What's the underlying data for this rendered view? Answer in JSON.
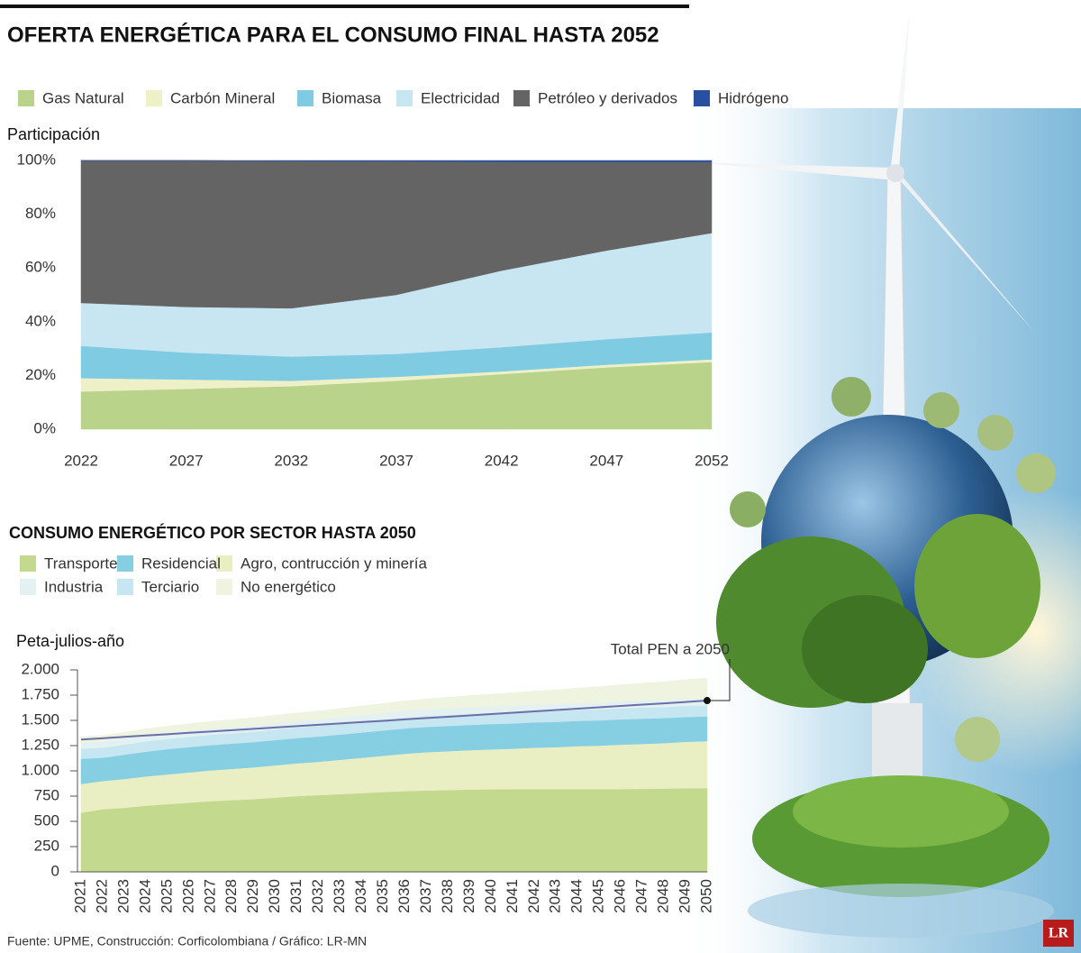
{
  "chart_data": [
    {
      "type": "area",
      "stacked": true,
      "title": "OFERTA ENERGÉTICA PARA EL CONSUMO FINAL HASTA 2052",
      "y_label": "Participación",
      "x": [
        2022,
        2027,
        2032,
        2037,
        2042,
        2047,
        2052
      ],
      "xlim": [
        2022,
        2052
      ],
      "xticks": [
        2022,
        2027,
        2032,
        2037,
        2042,
        2047,
        2052
      ],
      "ylim": [
        0,
        100
      ],
      "yticks": [
        {
          "value": 0,
          "label": "0%"
        },
        {
          "value": 20,
          "label": "20%"
        },
        {
          "value": 40,
          "label": "40%"
        },
        {
          "value": 60,
          "label": "60%"
        },
        {
          "value": 80,
          "label": "80%"
        },
        {
          "value": 100,
          "label": "100%"
        }
      ],
      "series": [
        {
          "name": "Gas Natural",
          "color": "#b9d38a",
          "values": [
            14,
            15,
            16,
            18,
            20.5,
            23,
            25
          ]
        },
        {
          "name": "Carbón Mineral",
          "color": "#eef0c8",
          "values": [
            5,
            3.5,
            2,
            1.5,
            1,
            1,
            1
          ]
        },
        {
          "name": "Biomasa",
          "color": "#7ecbe2",
          "values": [
            12,
            10,
            9,
            8.5,
            9,
            9.5,
            10
          ]
        },
        {
          "name": "Electricidad",
          "color": "#c8e6f2",
          "values": [
            16,
            17,
            18,
            22,
            28.5,
            33,
            37
          ]
        },
        {
          "name": "Petróleo y derivados",
          "color": "#646464",
          "values": [
            53,
            54.5,
            54.8,
            49.7,
            40.5,
            33,
            26.5
          ]
        },
        {
          "name": "Hidrógeno",
          "color": "#2b4fa0",
          "values": [
            0,
            0,
            0.2,
            0.3,
            0.5,
            0.5,
            0.5
          ]
        }
      ]
    },
    {
      "type": "area",
      "stacked": true,
      "title": "CONSUMO ENERGÉTICO POR SECTOR HASTA 2050",
      "y_label": "Peta-julios-año",
      "categories": [
        "2021",
        "2022",
        "2023",
        "2024",
        "2025",
        "2026",
        "2027",
        "2028",
        "2029",
        "2030",
        "2031",
        "2032",
        "2033",
        "2034",
        "2035",
        "2036",
        "2037",
        "2038",
        "2039",
        "2040",
        "2041",
        "2042",
        "2043",
        "2044",
        "2045",
        "2046",
        "2047",
        "2048",
        "2049",
        "2050"
      ],
      "ylim": [
        0,
        2000
      ],
      "yticks": [
        0,
        250,
        500,
        750,
        {
          "value": 1000,
          "label": "1.000"
        },
        {
          "value": 1250,
          "label": "1.250"
        },
        {
          "value": 1500,
          "label": "1.500"
        },
        {
          "value": 1750,
          "label": "1.750"
        },
        {
          "value": 2000,
          "label": "2.000"
        }
      ],
      "series": [
        {
          "name": "Transporte",
          "color": "#c3d98e",
          "values": [
            585,
            620,
            635,
            655,
            670,
            685,
            700,
            710,
            720,
            735,
            750,
            760,
            770,
            780,
            790,
            800,
            805,
            810,
            815,
            818,
            820,
            820,
            820,
            820,
            820,
            820,
            822,
            825,
            828,
            830
          ]
        },
        {
          "name": "Agro, contrucción y minería",
          "color": "#e9efc3",
          "values": [
            285,
            280,
            285,
            290,
            295,
            300,
            305,
            310,
            315,
            320,
            325,
            330,
            340,
            350,
            360,
            370,
            380,
            385,
            390,
            395,
            400,
            410,
            415,
            425,
            430,
            440,
            445,
            450,
            460,
            465
          ]
        },
        {
          "name": "Residencial",
          "color": "#86cfe3",
          "values": [
            250,
            230,
            240,
            245,
            250,
            250,
            250,
            250,
            250,
            250,
            250,
            250,
            250,
            250,
            250,
            250,
            250,
            250,
            250,
            250,
            250,
            250,
            250,
            250,
            250,
            250,
            250,
            248,
            245,
            245
          ]
        },
        {
          "name": "Terciario",
          "color": "#c6e6f2",
          "values": [
            100,
            100,
            100,
            101,
            101,
            102,
            102,
            103,
            103,
            104,
            104,
            105,
            105,
            106,
            106,
            106,
            107,
            107,
            107,
            108,
            108,
            108,
            109,
            109,
            109,
            110,
            110,
            110,
            110,
            110
          ]
        },
        {
          "name": "Industria",
          "color": "#e3f1f3",
          "values": [
            60,
            60,
            60,
            61,
            61,
            62,
            62,
            63,
            63,
            64,
            64,
            65,
            65,
            65,
            66,
            66,
            66,
            67,
            67,
            67,
            68,
            68,
            68,
            69,
            69,
            69,
            70,
            70,
            70,
            70
          ]
        },
        {
          "name": "No energético",
          "color": "#eef4df",
          "values": [
            60,
            60,
            62,
            64,
            66,
            68,
            70,
            72,
            75,
            78,
            81,
            84,
            88,
            92,
            96,
            100,
            105,
            110,
            116,
            122,
            128,
            134,
            140,
            148,
            156,
            164,
            172,
            180,
            190,
            200
          ]
        }
      ],
      "line": {
        "name": "Total PEN a 2050",
        "color": "#6b6fa8",
        "values": [
          1310,
          1323,
          1337,
          1350,
          1363,
          1377,
          1390,
          1403,
          1416,
          1430,
          1443,
          1456,
          1470,
          1483,
          1496,
          1510,
          1523,
          1536,
          1549,
          1563,
          1576,
          1589,
          1603,
          1616,
          1629,
          1643,
          1656,
          1669,
          1682,
          1696
        ]
      }
    }
  ],
  "source": "Fuente: UPME, Construcción: Corficolombiana / Gráfico: LR-MN",
  "logo": "LR"
}
